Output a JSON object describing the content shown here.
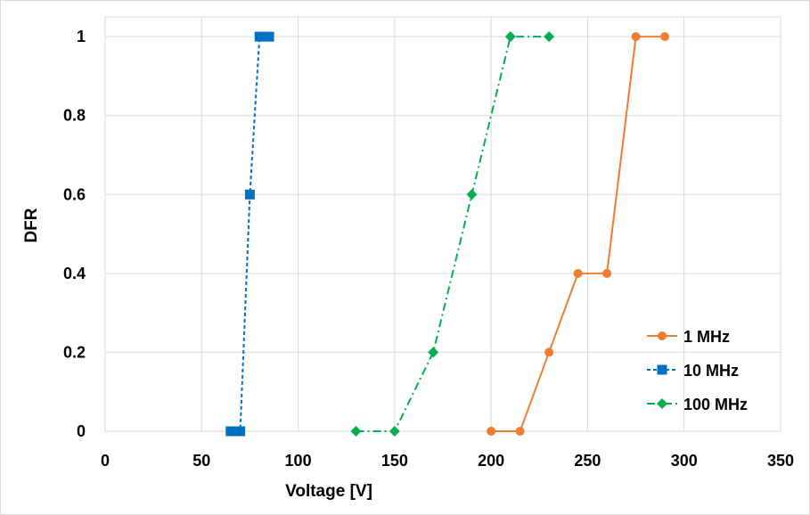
{
  "chart_data": {
    "type": "line",
    "title": "",
    "xlabel": "Voltage [V]",
    "ylabel": "DFR",
    "xlim": [
      0,
      350
    ],
    "ylim": [
      0,
      1.05
    ],
    "x_ticks": [
      0,
      50,
      100,
      150,
      200,
      250,
      300,
      350
    ],
    "y_ticks": [
      0,
      0.2,
      0.4,
      0.6,
      0.8,
      1
    ],
    "x_tick_labels": [
      "0",
      "50",
      "100",
      "150",
      "200",
      "250",
      "300",
      "350"
    ],
    "y_tick_labels": [
      "0",
      "0.2",
      "0.4",
      "0.6",
      "0.8",
      "1"
    ],
    "grid": true,
    "legend_position": "right",
    "series": [
      {
        "name": "1 MHz",
        "color": "#ED7D31",
        "marker": "circle",
        "line_style": "solid",
        "x": [
          200,
          215,
          230,
          245,
          260,
          275,
          290
        ],
        "y": [
          0,
          0,
          0.2,
          0.4,
          0.4,
          1,
          1
        ]
      },
      {
        "name": "10 MHz",
        "color": "#0070C0",
        "marker": "square",
        "line_style": "dashed",
        "x": [
          65,
          70,
          75,
          80,
          85
        ],
        "y": [
          0,
          0,
          0.6,
          1,
          1
        ]
      },
      {
        "name": "100 MHz",
        "color": "#00B050",
        "marker": "diamond",
        "line_style": "dashdot",
        "x": [
          130,
          150,
          170,
          190,
          210,
          230
        ],
        "y": [
          0,
          0,
          0.2,
          0.6,
          1,
          1
        ]
      }
    ]
  }
}
